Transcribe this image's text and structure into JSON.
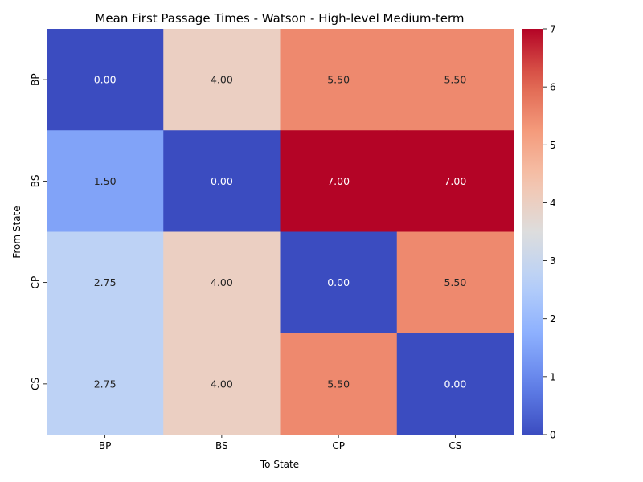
{
  "chart_data": {
    "type": "heatmap",
    "title": "Mean First Passage Times - Watson - High-level Medium-term",
    "xlabel": "To State",
    "ylabel": "From State",
    "x_categories": [
      "BP",
      "BS",
      "CP",
      "CS"
    ],
    "y_categories": [
      "BP",
      "BS",
      "CP",
      "CS"
    ],
    "values": [
      [
        0.0,
        4.0,
        5.5,
        5.5
      ],
      [
        1.5,
        0.0,
        7.0,
        7.0
      ],
      [
        2.75,
        4.0,
        0.0,
        5.5
      ],
      [
        2.75,
        4.0,
        5.5,
        0.0
      ]
    ],
    "cell_labels": [
      [
        "0.00",
        "4.00",
        "5.50",
        "5.50"
      ],
      [
        "1.50",
        "0.00",
        "7.00",
        "7.00"
      ],
      [
        "2.75",
        "4.00",
        "0.00",
        "5.50"
      ],
      [
        "2.75",
        "4.00",
        "5.50",
        "0.00"
      ]
    ],
    "colorbar": {
      "min": 0,
      "max": 7,
      "ticks": [
        "0",
        "1",
        "2",
        "3",
        "4",
        "5",
        "6",
        "7"
      ],
      "colormap": "coolwarm"
    }
  }
}
